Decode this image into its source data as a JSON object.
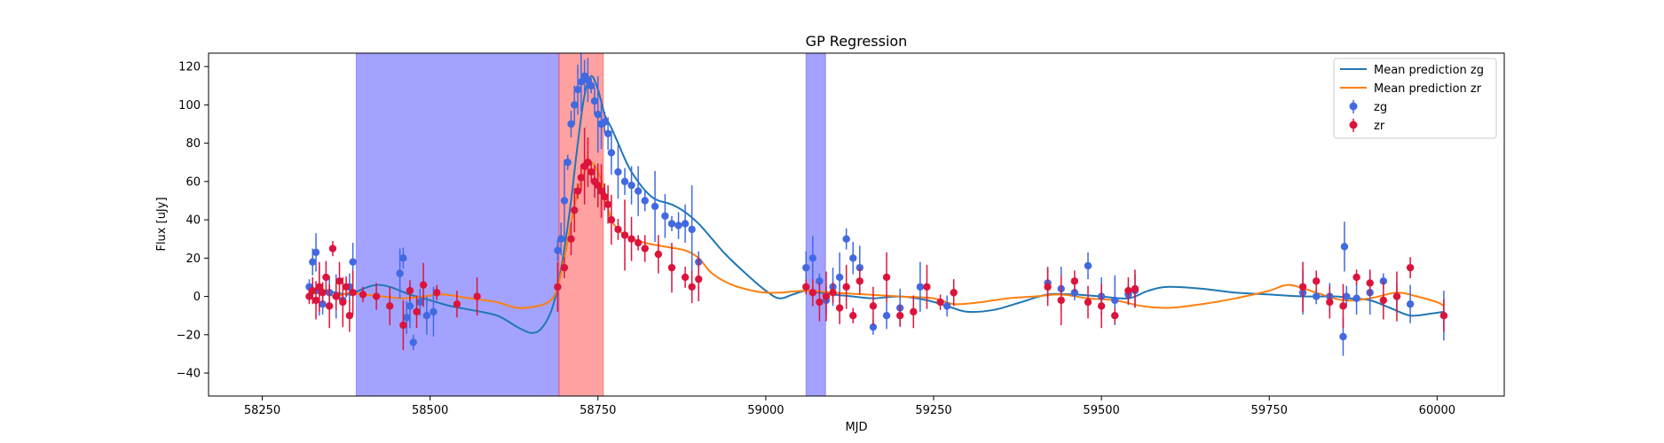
{
  "chart_data": {
    "type": "scatter",
    "title": "GP Regression",
    "xlabel": "MJD",
    "ylabel": "Flux [uJy]",
    "xlim": [
      58170,
      60100
    ],
    "ylim": [
      -52,
      127
    ],
    "xticks": [
      58250,
      58500,
      58750,
      59000,
      59250,
      59500,
      59750,
      60000
    ],
    "yticks": [
      -40,
      -20,
      0,
      20,
      40,
      60,
      80,
      100,
      120
    ],
    "grid": false,
    "legend_position": "top-right",
    "legend": [
      "Mean prediction zg",
      "Mean prediction zr",
      "zg",
      "zr"
    ],
    "colors": {
      "zg_line": "#1f77b4",
      "zr_line": "#ff7f0e",
      "zg_points": "#4169e1",
      "zr_points": "#dc143c",
      "blue_span": "#6666ff",
      "red_span": "#ff4444"
    },
    "spans": [
      {
        "band": "zg",
        "x0": 58390,
        "x1": 58692
      },
      {
        "band": "zg",
        "x0": 59060,
        "x1": 59089
      },
      {
        "band": "zr",
        "x0": 58692,
        "x1": 58758
      }
    ],
    "series": [
      {
        "name": "Mean prediction zg",
        "kind": "line",
        "x": [
          58320,
          58340,
          58360,
          58380,
          58400,
          58420,
          58440,
          58470,
          58500,
          58530,
          58560,
          58600,
          58630,
          58650,
          58665,
          58680,
          58690,
          58700,
          58710,
          58720,
          58730,
          58740,
          58750,
          58760,
          58770,
          58780,
          58800,
          58830,
          58860,
          58880,
          58900,
          58920,
          58940,
          58970,
          59000,
          59020,
          59040,
          59060,
          59080,
          59100,
          59130,
          59160,
          59200,
          59240,
          59270,
          59300,
          59340,
          59380,
          59420,
          59460,
          59500,
          59540,
          59570,
          59600,
          59650,
          59700,
          59750,
          59800,
          59850,
          59870,
          59900,
          59930,
          59960,
          59990,
          60010
        ],
        "y": [
          2,
          3,
          2,
          1,
          4,
          6,
          5,
          1,
          -2,
          -5,
          -7,
          -10,
          -16,
          -19,
          -17,
          -8,
          5,
          25,
          50,
          80,
          105,
          115,
          108,
          95,
          88,
          80,
          65,
          52,
          48,
          44,
          38,
          30,
          22,
          12,
          3,
          -1,
          1,
          3,
          2,
          1,
          0,
          -1,
          0,
          -2,
          -5,
          -8,
          -7,
          -3,
          1,
          1,
          0,
          -1,
          3,
          5,
          4,
          2,
          1,
          0,
          0,
          -1,
          -2,
          -6,
          -10,
          -9,
          -8
        ]
      },
      {
        "name": "Mean prediction zr",
        "kind": "line",
        "x": [
          58320,
          58340,
          58360,
          58380,
          58400,
          58430,
          58460,
          58490,
          58520,
          58560,
          58600,
          58630,
          58660,
          58680,
          58690,
          58700,
          58710,
          58720,
          58730,
          58740,
          58750,
          58760,
          58770,
          58790,
          58820,
          58850,
          58880,
          58900,
          58920,
          58950,
          58980,
          59000,
          59020,
          59060,
          59100,
          59150,
          59200,
          59250,
          59280,
          59320,
          59360,
          59400,
          59440,
          59480,
          59520,
          59560,
          59600,
          59650,
          59700,
          59750,
          59780,
          59820,
          59860,
          59900,
          59940,
          59970,
          60000,
          60010
        ],
        "y": [
          1,
          2,
          0,
          2,
          1,
          0,
          -1,
          0,
          1,
          -1,
          -3,
          -6,
          -5,
          -2,
          5,
          20,
          38,
          55,
          65,
          70,
          65,
          55,
          40,
          32,
          28,
          26,
          24,
          20,
          12,
          6,
          3,
          2,
          2,
          3,
          2,
          1,
          0,
          -1,
          -4,
          -3,
          -1,
          0,
          1,
          -1,
          -2,
          -5,
          -6,
          -4,
          -1,
          3,
          6,
          2,
          -2,
          -1,
          2,
          0,
          -3,
          -5
        ]
      },
      {
        "name": "zg",
        "kind": "points",
        "x": [
          58320,
          58325,
          58330,
          58335,
          58340,
          58350,
          58360,
          58370,
          58380,
          58385,
          58455,
          58460,
          58465,
          58470,
          58475,
          58485,
          58495,
          58505,
          58690,
          58695,
          58700,
          58705,
          58710,
          58715,
          58720,
          58725,
          58730,
          58735,
          58740,
          58745,
          58750,
          58755,
          58760,
          58765,
          58770,
          58780,
          58790,
          58800,
          58810,
          58820,
          58835,
          58850,
          58860,
          58870,
          58880,
          58890,
          58900,
          59060,
          59070,
          59080,
          59090,
          59100,
          59110,
          59120,
          59130,
          59140,
          59160,
          59180,
          59200,
          59230,
          59270,
          59420,
          59440,
          59460,
          59480,
          59500,
          59520,
          59540,
          59550,
          59800,
          59820,
          59840,
          59860,
          59862,
          59865,
          59880,
          59900,
          59920,
          59940,
          59960,
          60010
        ],
        "y": [
          5,
          18,
          23,
          3,
          -4,
          2,
          0,
          -2,
          5,
          18,
          12,
          20,
          -11,
          -5,
          -24,
          -3,
          -10,
          -8,
          24,
          30,
          50,
          70,
          90,
          100,
          108,
          112,
          115,
          113,
          110,
          102,
          95,
          90,
          91,
          85,
          75,
          65,
          60,
          58,
          55,
          50,
          47,
          42,
          38,
          37,
          38,
          35,
          18,
          15,
          20,
          8,
          -2,
          5,
          10,
          30,
          20,
          15,
          -16,
          -10,
          -6,
          5,
          -5,
          7,
          4,
          2,
          16,
          0,
          -2,
          1,
          3,
          2,
          0,
          0,
          -21,
          26,
          0,
          -1,
          2,
          8,
          0,
          -4,
          -10
        ]
      },
      {
        "name": "zr",
        "kind": "points",
        "x": [
          58320,
          58325,
          58330,
          58335,
          58340,
          58345,
          58350,
          58355,
          58360,
          58365,
          58370,
          58375,
          58380,
          58385,
          58400,
          58420,
          58440,
          58460,
          58470,
          58480,
          58490,
          58510,
          58540,
          58570,
          58690,
          58700,
          58710,
          58715,
          58720,
          58725,
          58730,
          58735,
          58740,
          58745,
          58750,
          58755,
          58760,
          58765,
          58770,
          58780,
          58790,
          58800,
          58810,
          58820,
          58840,
          58860,
          58880,
          58890,
          58900,
          59060,
          59070,
          59080,
          59090,
          59100,
          59110,
          59120,
          59130,
          59140,
          59160,
          59180,
          59200,
          59220,
          59240,
          59260,
          59280,
          59420,
          59440,
          59460,
          59480,
          59500,
          59520,
          59540,
          59550,
          59800,
          59820,
          59840,
          59860,
          59880,
          59900,
          59920,
          59940,
          59960,
          60010
        ],
        "y": [
          0,
          3,
          -2,
          5,
          2,
          10,
          -5,
          25,
          0,
          8,
          -3,
          5,
          -10,
          2,
          1,
          0,
          -5,
          -15,
          3,
          -8,
          6,
          2,
          -4,
          0,
          5,
          15,
          30,
          45,
          55,
          62,
          68,
          70,
          65,
          60,
          58,
          55,
          52,
          48,
          40,
          35,
          32,
          30,
          28,
          25,
          22,
          15,
          10,
          5,
          9,
          5,
          2,
          -3,
          0,
          2,
          -6,
          5,
          -10,
          8,
          -5,
          10,
          -10,
          -8,
          5,
          -3,
          2,
          5,
          -2,
          8,
          -3,
          -5,
          -10,
          3,
          4,
          5,
          8,
          -3,
          -5,
          10,
          7,
          -2,
          0,
          15,
          -10
        ]
      }
    ]
  }
}
